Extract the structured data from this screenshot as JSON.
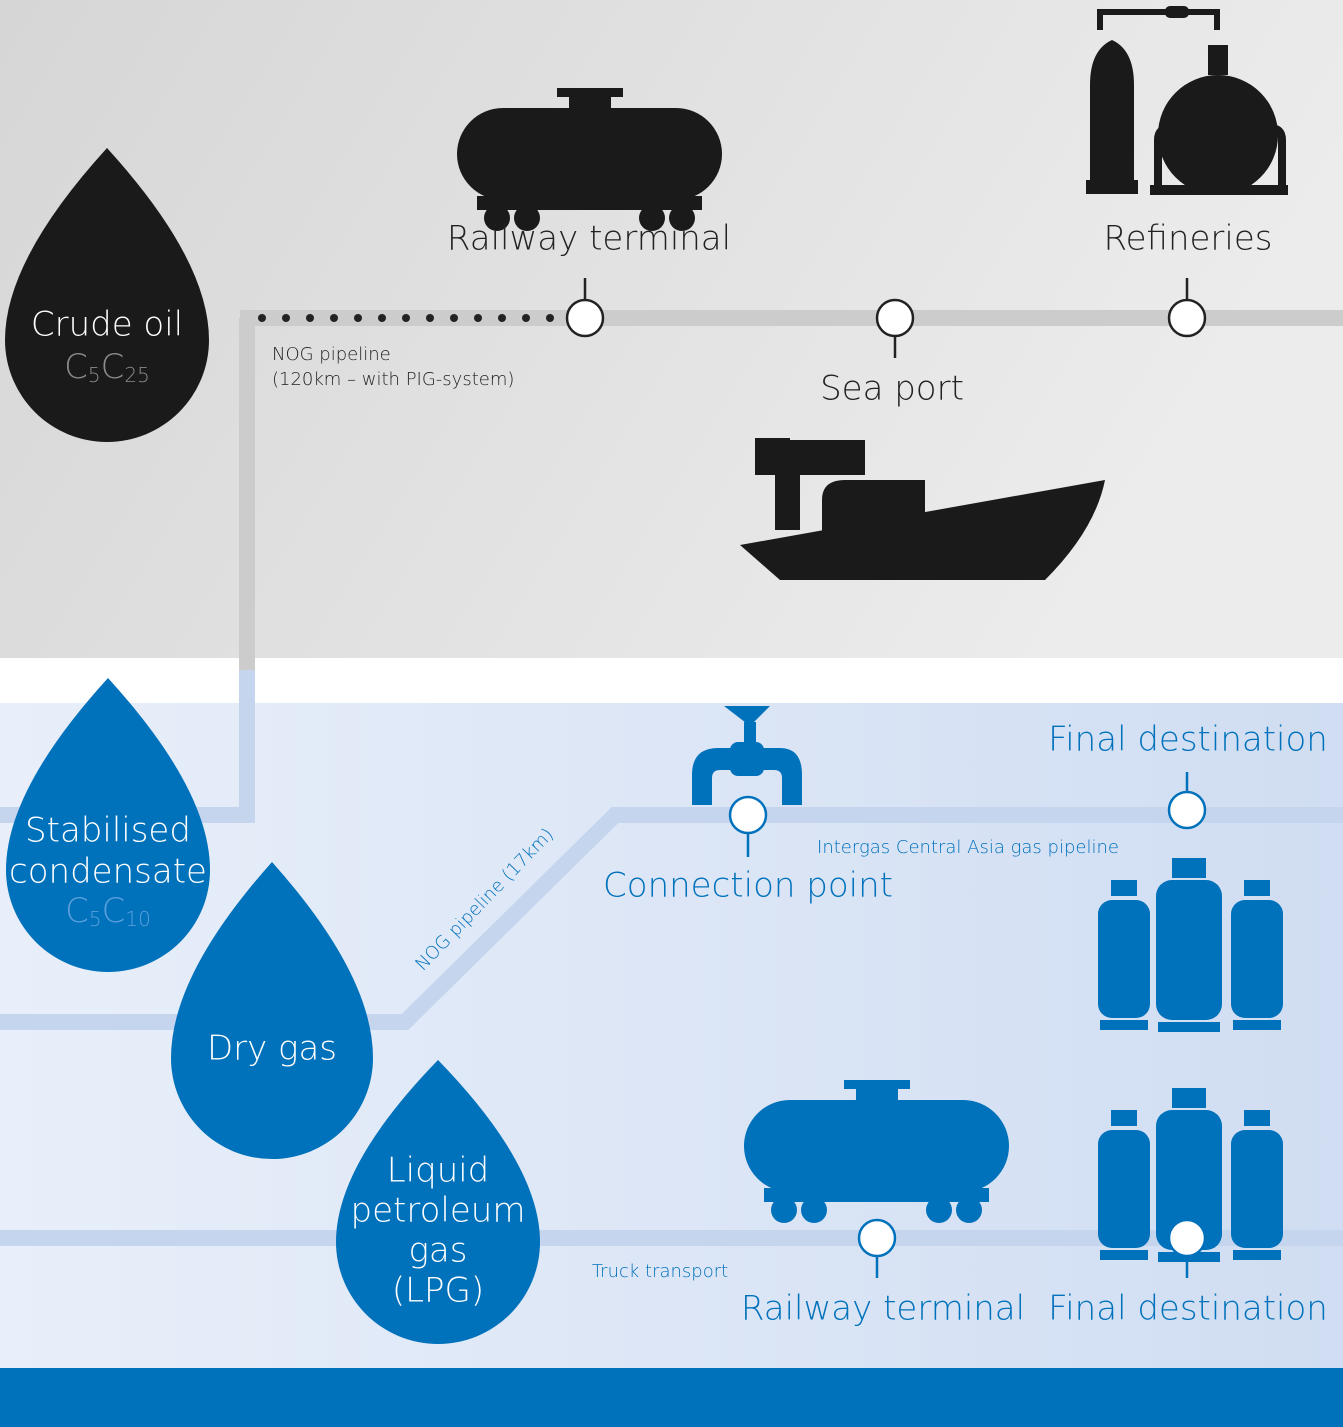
{
  "crude_oil": {
    "label": "Crude oil",
    "formula": [
      {
        "base": "C",
        "sub": "5"
      },
      {
        "base": "C",
        "sub": "25"
      }
    ]
  },
  "oil_route": {
    "pipeline_label": [
      "NOG pipeline",
      "(120km – with PIG-system)"
    ],
    "stops": {
      "railway_terminal": "Railway terminal",
      "sea_port": "Sea port",
      "refineries": "Refineries"
    }
  },
  "stabilised_condensate": {
    "label": [
      "Stabilised",
      "condensate"
    ],
    "formula": [
      {
        "base": "C",
        "sub": "5"
      },
      {
        "base": "C",
        "sub": "10"
      }
    ]
  },
  "dry_gas": {
    "label": "Dry gas",
    "pipeline_label": "NOG pipeline (17km)",
    "connection_point": "Connection point",
    "gas_pipeline_label": "Intergas Central Asia gas pipeline",
    "final_destination": "Final destination"
  },
  "lpg": {
    "label": [
      "Liquid",
      "petroleum",
      "gas",
      "(LPG)"
    ],
    "transport_label": "Truck transport",
    "railway_terminal": "Railway terminal",
    "final_destination": "Final destination"
  }
}
